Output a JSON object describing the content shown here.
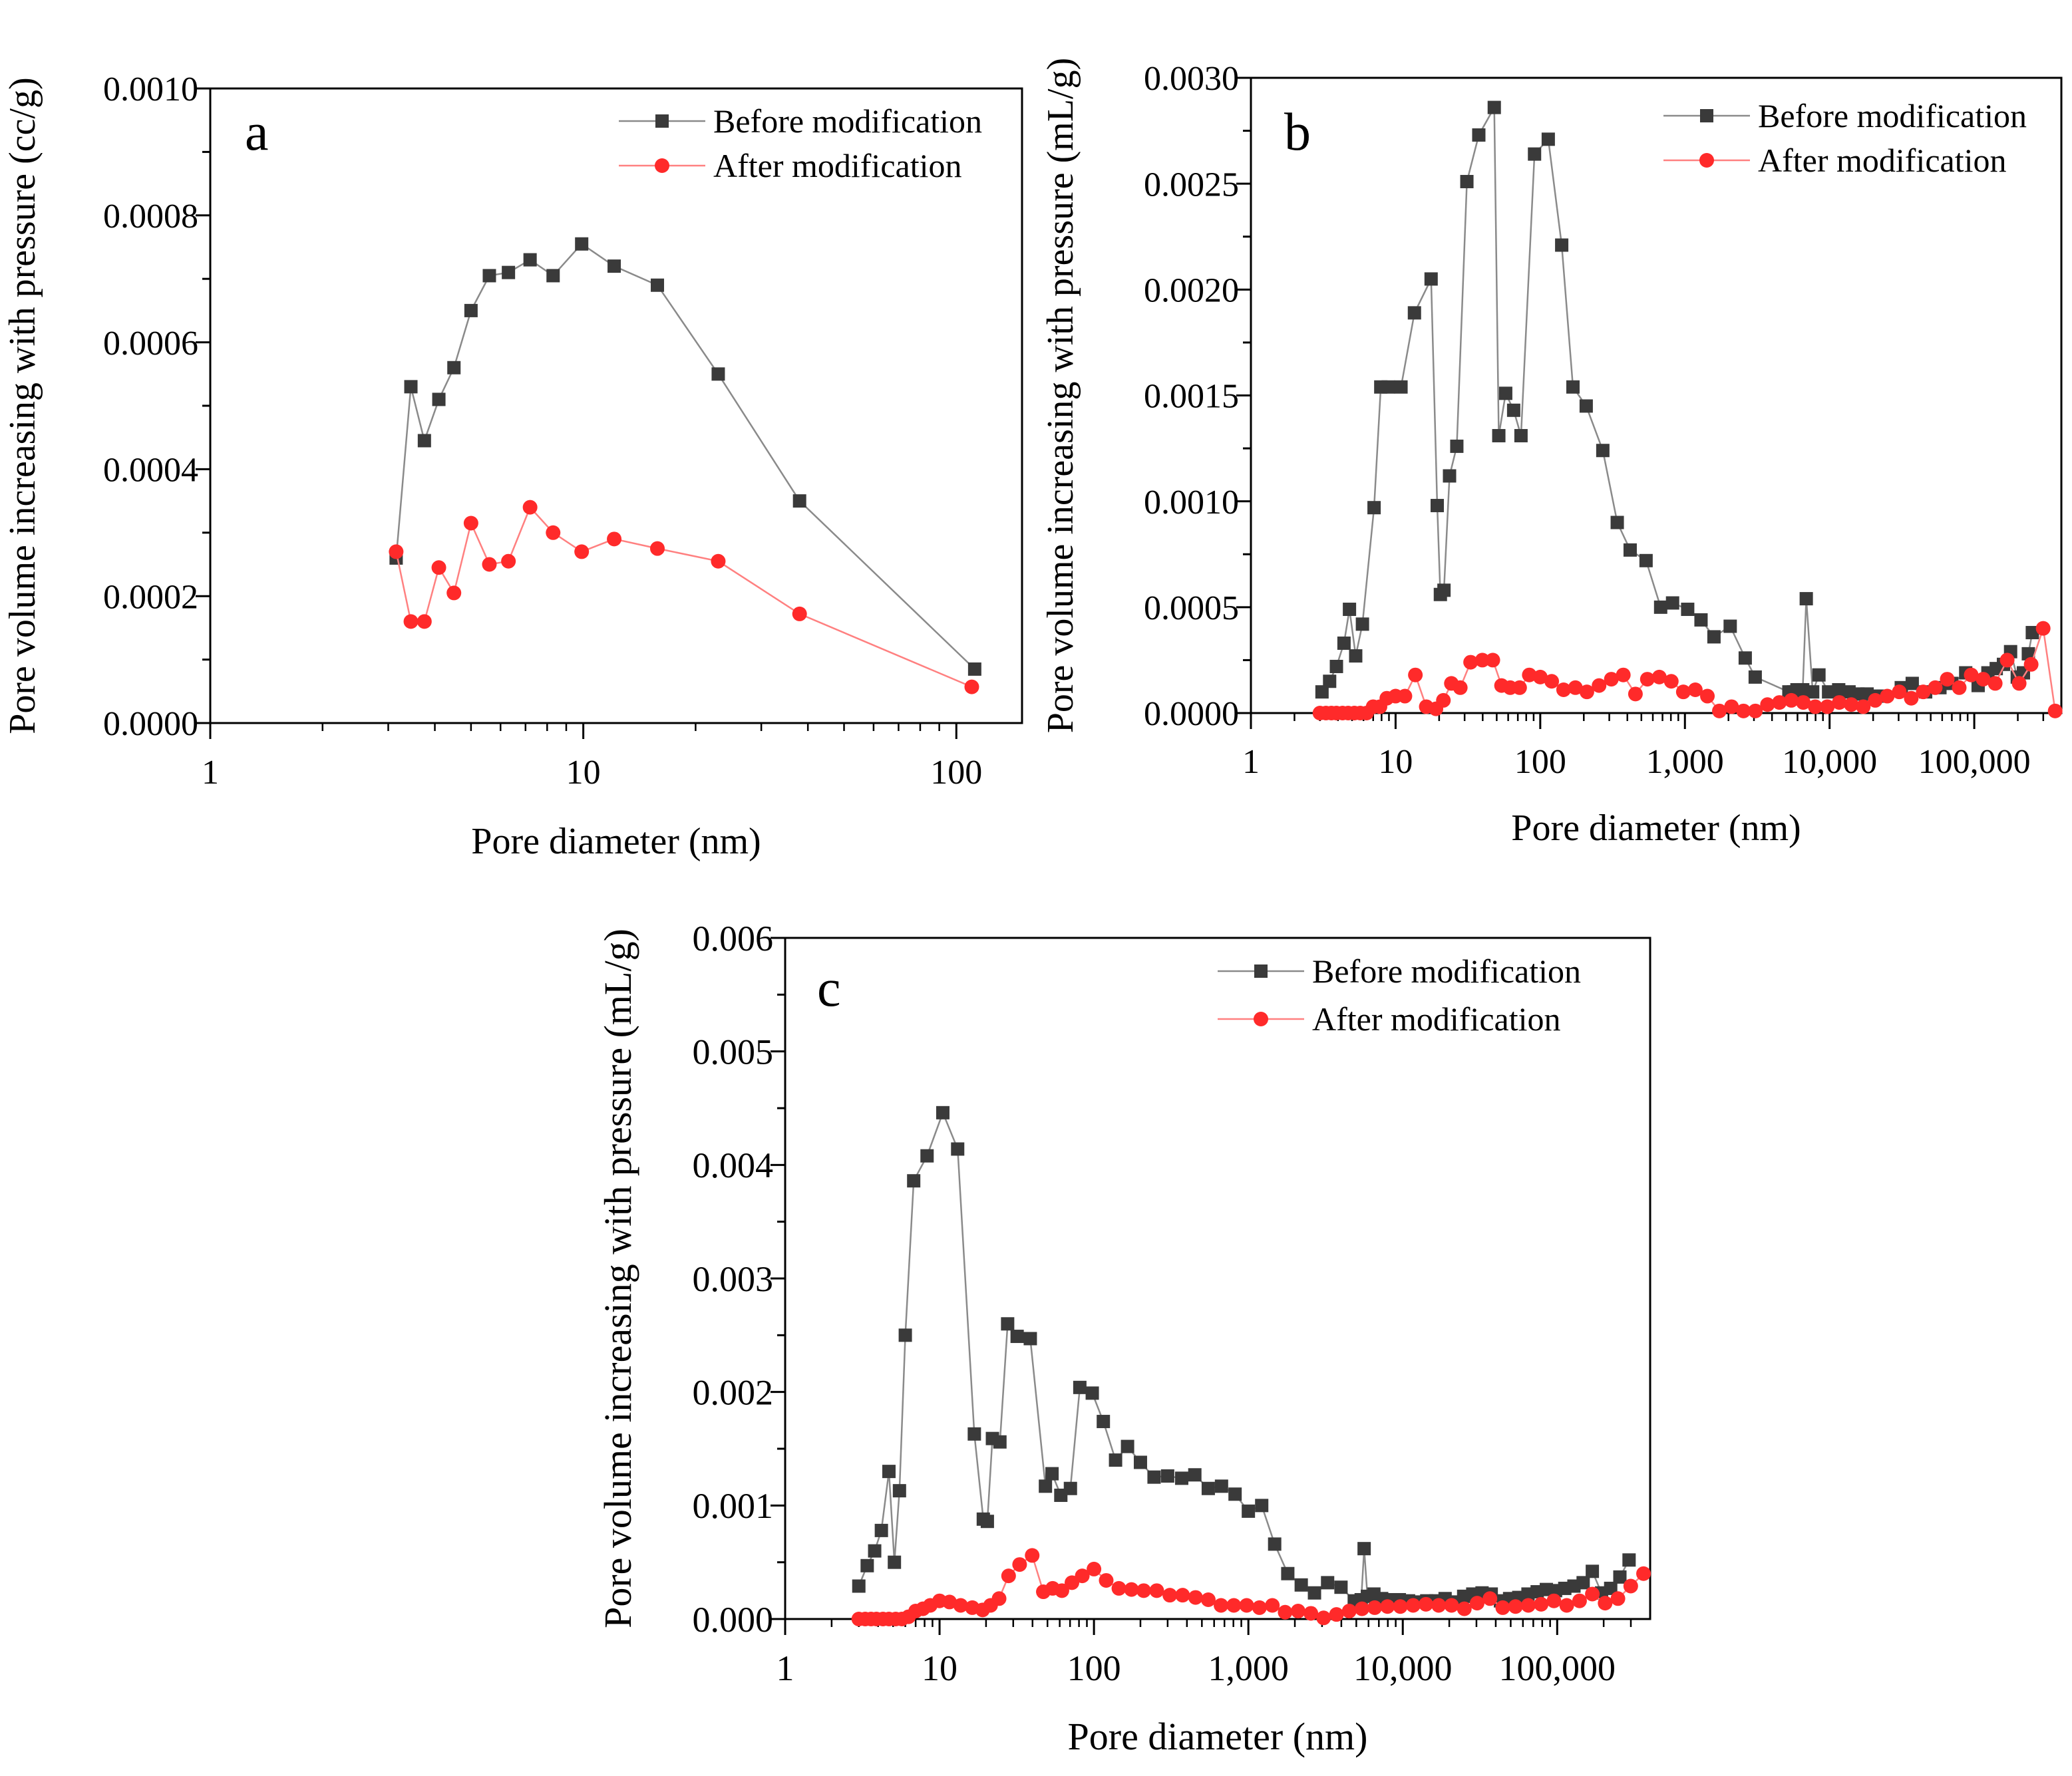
{
  "chart_data": [
    {
      "panel_label": "a",
      "type": "line",
      "xlabel": "Pore diameter (nm)",
      "ylabel": "Pore volume increasing with pressure (cc/g)",
      "xscale": "log",
      "xlim": [
        1,
        150
      ],
      "ylim": [
        0,
        0.001
      ],
      "xticks": [
        1,
        10,
        100
      ],
      "xtick_labels": [
        "1",
        "10",
        "100"
      ],
      "yticks": [
        0,
        0.0002,
        0.0004,
        0.0006,
        0.0008,
        0.001
      ],
      "ytick_labels": [
        "0.0000",
        "0.0002",
        "0.0004",
        "0.0006",
        "0.0008",
        "0.0010"
      ],
      "legend_position": "top-right",
      "series": [
        {
          "name": "Before modification",
          "marker": "square",
          "color": "#3a3a3a",
          "line_color": "#8a8a8a",
          "x": [
            3.15,
            3.45,
            3.75,
            4.1,
            4.5,
            5.0,
            5.6,
            6.3,
            7.2,
            8.3,
            9.9,
            12.1,
            15.8,
            23.0,
            38.0,
            112.0
          ],
          "y": [
            0.00026,
            0.00053,
            0.000445,
            0.00051,
            0.00056,
            0.00065,
            0.000705,
            0.00071,
            0.00073,
            0.000705,
            0.000755,
            0.00072,
            0.00069,
            0.00055,
            0.00035,
            8.5e-05
          ]
        },
        {
          "name": "After modification",
          "marker": "circle",
          "color": "#ff2a2a",
          "line_color": "#ff8080",
          "x": [
            3.15,
            3.45,
            3.75,
            4.1,
            4.5,
            5.0,
            5.6,
            6.3,
            7.2,
            8.3,
            9.9,
            12.1,
            15.8,
            23.0,
            38.0,
            110.0
          ],
          "y": [
            0.00027,
            0.00016,
            0.00016,
            0.000245,
            0.000205,
            0.000315,
            0.00025,
            0.000255,
            0.00034,
            0.0003,
            0.00027,
            0.00029,
            0.000275,
            0.000255,
            0.000172,
            5.7e-05
          ]
        }
      ]
    },
    {
      "panel_label": "b",
      "type": "line",
      "xlabel": "Pore diameter (nm)",
      "ylabel": "Pore volume increasing with pressure (mL/g)",
      "xscale": "log",
      "xlim": [
        1,
        400000
      ],
      "ylim": [
        0,
        0.003
      ],
      "xticks": [
        1,
        10,
        100,
        1000,
        10000,
        100000
      ],
      "xtick_labels": [
        "1",
        "10",
        "100",
        "1,000",
        "10,000",
        "100,000"
      ],
      "yticks": [
        0,
        0.0005,
        0.001,
        0.0015,
        0.002,
        0.0025,
        0.003
      ],
      "ytick_labels": [
        "0.0000",
        "0.0005",
        "0.0010",
        "0.0015",
        "0.0020",
        "0.0025",
        "0.0030"
      ],
      "legend_position": "top-right",
      "series": [
        {
          "name": "Before modification",
          "marker": "square",
          "color": "#3a3a3a",
          "line_color": "#8a8a8a",
          "x": [
            3.1,
            3.5,
            3.9,
            4.4,
            4.8,
            5.3,
            5.9,
            7.1,
            7.9,
            8.9,
            10.9,
            13.5,
            17.6,
            19.4,
            20.4,
            21.6,
            23.6,
            26.5,
            31.1,
            37.6,
            48.1,
            51.7,
            57.7,
            65.5,
            73.6,
            91.3,
            113.6,
            140.7,
            168.3,
            207.8,
            270.7,
            340.6,
            418.3,
            538.8,
            679.6,
            821.6,
            1045,
            1292,
            1588,
            2056,
            2612,
            3061,
            5230,
            5630,
            5950,
            6270,
            6520,
            6900,
            7640,
            8440,
            9840,
            11560,
            13630,
            15700,
            18160,
            20750,
            23690,
            31300,
            37270,
            46130,
            57900,
            70040,
            87280,
            106400,
            124300,
            141900,
            159200,
            178300,
            198300,
            218700,
            236600,
            252100
          ],
          "y": [
            0.0001,
            0.00015,
            0.00022,
            0.00033,
            0.00049,
            0.00027,
            0.00042,
            0.00097,
            0.00154,
            0.00154,
            0.00154,
            0.00189,
            0.00205,
            0.00098,
            0.00056,
            0.00058,
            0.00112,
            0.00126,
            0.00251,
            0.00273,
            0.00286,
            0.00131,
            0.00151,
            0.00143,
            0.00131,
            0.00264,
            0.00271,
            0.00221,
            0.00154,
            0.00145,
            0.00124,
            0.0009,
            0.00077,
            0.00072,
            0.0005,
            0.00052,
            0.00049,
            0.00044,
            0.00036,
            0.00041,
            0.00026,
            0.00017,
            0.0001,
            0.0001,
            0.00011,
            0.00011,
            0.00011,
            0.00054,
            0.0001,
            0.00018,
            0.0001,
            0.00011,
            0.0001,
            9e-05,
            9e-05,
            8e-05,
            8e-05,
            0.00012,
            0.00014,
            0.0001,
            0.00012,
            0.00014,
            0.00019,
            0.00013,
            0.00019,
            0.00021,
            0.00023,
            0.00029,
            0.00017,
            0.00019,
            0.00028,
            0.00038
          ]
        },
        {
          "name": "After modification",
          "marker": "circle",
          "color": "#ff2a2a",
          "line_color": "#ff8080",
          "x": [
            3.0,
            3.3,
            3.6,
            3.9,
            4.3,
            4.7,
            5.2,
            5.7,
            6.3,
            7.0,
            7.8,
            8.7,
            10.0,
            11.6,
            13.7,
            16.3,
            19.0,
            21.4,
            24.3,
            28.0,
            33.0,
            39.8,
            47.0,
            54.0,
            62.0,
            72.0,
            84.0,
            100.0,
            120.0,
            145.0,
            175.0,
            210.0,
            255.0,
            310.0,
            375.0,
            455.0,
            550.0,
            665.0,
            805.0,
            975.0,
            1180,
            1430,
            1730,
            2100,
            2540,
            3070,
            3720,
            4500,
            5440,
            6580,
            7960,
            9640,
            11670,
            14120,
            17090,
            20690,
            25040,
            30310,
            36690,
            44400,
            53740,
            65040,
            78720,
            95270,
            115300,
            139600,
            168900,
            204400,
            247400,
            299500,
            362400
          ],
          "y": [
            0.0,
            0.0,
            0.0,
            0.0,
            0.0,
            0.0,
            0.0,
            0.0,
            0.0,
            3e-05,
            3e-05,
            7e-05,
            8e-05,
            8e-05,
            0.00018,
            3e-05,
            2e-05,
            6e-05,
            0.00014,
            0.00012,
            0.00024,
            0.00025,
            0.00025,
            0.00013,
            0.00012,
            0.00012,
            0.00018,
            0.00017,
            0.00015,
            0.00011,
            0.00012,
            0.0001,
            0.00013,
            0.00016,
            0.00018,
            9e-05,
            0.00016,
            0.00017,
            0.00015,
            0.0001,
            0.00011,
            8e-05,
            1e-05,
            3e-05,
            1e-05,
            1e-05,
            4e-05,
            5e-05,
            6e-05,
            5e-05,
            3e-05,
            3e-05,
            5e-05,
            4e-05,
            3e-05,
            6e-05,
            8e-05,
            0.0001,
            7e-05,
            0.0001,
            0.00012,
            0.00016,
            0.00012,
            0.00018,
            0.00016,
            0.00014,
            0.00025,
            0.00014,
            0.00023,
            0.0004,
            1e-05
          ]
        }
      ]
    },
    {
      "panel_label": "c",
      "type": "line",
      "xlabel": "Pore diameter (nm)",
      "ylabel": "Pore volume increasing with pressure (mL/g)",
      "xscale": "log",
      "xlim": [
        1,
        400000
      ],
      "ylim": [
        0,
        0.006
      ],
      "xticks": [
        1,
        10,
        100,
        1000,
        10000,
        100000
      ],
      "xtick_labels": [
        "1",
        "10",
        "100",
        "1,000",
        "10,000",
        "100,000"
      ],
      "yticks": [
        0,
        0.001,
        0.002,
        0.003,
        0.004,
        0.005,
        0.006
      ],
      "ytick_labels": [
        "0.000",
        "0.001",
        "0.002",
        "0.003",
        "0.004",
        "0.005",
        "0.006"
      ],
      "legend_position": "top-right",
      "series": [
        {
          "name": "Before modification",
          "marker": "square",
          "color": "#3a3a3a",
          "line_color": "#8a8a8a",
          "x": [
            3.0,
            3.4,
            3.8,
            4.2,
            4.7,
            5.1,
            5.5,
            6.0,
            6.8,
            8.3,
            10.5,
            13.1,
            16.8,
            19.2,
            20.4,
            22.0,
            24.6,
            27.6,
            31.8,
            38.7,
            48.5,
            53.5,
            61.0,
            70.4,
            81.0,
            97.5,
            115.0,
            138.0,
            165.0,
            200.0,
            245.0,
            300.0,
            370.0,
            450.0,
            550.0,
            670.0,
            820.0,
            1000,
            1220,
            1480,
            1800,
            2200,
            2680,
            3260,
            3980,
            4850,
            5380,
            5620,
            5900,
            6500,
            7300,
            8300,
            9500,
            10900,
            12500,
            14300,
            16400,
            18800,
            21600,
            24800,
            28400,
            32600,
            37400,
            42900,
            49200,
            56400,
            64700,
            74200,
            85100,
            97600,
            112000,
            128400,
            147300,
            168900,
            193700,
            222100,
            254700,
            292100
          ],
          "y": [
            0.00029,
            0.00047,
            0.0006,
            0.00078,
            0.0013,
            0.0005,
            0.00113,
            0.0025,
            0.00386,
            0.00408,
            0.00446,
            0.00414,
            0.00163,
            0.00088,
            0.00086,
            0.00159,
            0.00156,
            0.0026,
            0.00249,
            0.00247,
            0.00117,
            0.00128,
            0.00109,
            0.00115,
            0.00204,
            0.00199,
            0.00174,
            0.0014,
            0.00152,
            0.00138,
            0.00125,
            0.00126,
            0.00124,
            0.00127,
            0.00115,
            0.00117,
            0.0011,
            0.00095,
            0.001,
            0.00066,
            0.0004,
            0.0003,
            0.00023,
            0.00032,
            0.00028,
            0.00016,
            0.00017,
            0.00062,
            0.0002,
            0.00022,
            0.00018,
            0.00017,
            0.00017,
            0.00016,
            0.00015,
            0.00016,
            0.00016,
            0.00018,
            0.00015,
            0.0002,
            0.00022,
            0.00023,
            0.00022,
            0.00016,
            0.00018,
            0.00019,
            0.00022,
            0.00024,
            0.00026,
            0.00025,
            0.00027,
            0.00029,
            0.00032,
            0.00042,
            0.00023,
            0.00027,
            0.00037,
            0.00052
          ]
        },
        {
          "name": "After modification",
          "marker": "circle",
          "color": "#ff2a2a",
          "line_color": "#ff8080",
          "x": [
            3.0,
            3.3,
            3.6,
            3.9,
            4.3,
            4.7,
            5.2,
            5.7,
            6.3,
            7.0,
            7.8,
            8.7,
            10.0,
            11.6,
            13.7,
            16.3,
            19.0,
            21.4,
            24.3,
            28.0,
            33.0,
            39.8,
            47.0,
            54.0,
            62.0,
            72.0,
            84.0,
            100.0,
            120.0,
            145.0,
            175.0,
            210.0,
            255.0,
            310.0,
            375.0,
            455.0,
            550.0,
            665.0,
            805.0,
            975.0,
            1180,
            1430,
            1730,
            2100,
            2540,
            3070,
            3720,
            4500,
            5440,
            6580,
            7960,
            9640,
            11670,
            14120,
            17090,
            20690,
            25040,
            30310,
            36690,
            44400,
            53740,
            65040,
            78720,
            95270,
            115300,
            139600,
            168900,
            204400,
            247400,
            299500,
            362400
          ],
          "y": [
            0.0,
            0.0,
            0.0,
            0.0,
            0.0,
            0.0,
            0.0,
            0.0,
            2e-05,
            7e-05,
            9e-05,
            0.00012,
            0.00016,
            0.00015,
            0.00012,
            0.0001,
            8e-05,
            0.00012,
            0.00018,
            0.00038,
            0.00048,
            0.00056,
            0.00024,
            0.00027,
            0.00025,
            0.00032,
            0.00038,
            0.00044,
            0.00034,
            0.00027,
            0.00026,
            0.00025,
            0.00025,
            0.00021,
            0.00021,
            0.00019,
            0.00017,
            0.00012,
            0.00012,
            0.00012,
            0.0001,
            0.00012,
            6e-05,
            7e-05,
            5e-05,
            1e-05,
            4e-05,
            7e-05,
            9e-05,
            0.0001,
            0.00011,
            0.00011,
            0.00012,
            0.00013,
            0.00012,
            0.00012,
            9e-05,
            0.00014,
            0.00018,
            0.0001,
            0.00011,
            0.00012,
            0.00013,
            0.00016,
            0.00012,
            0.00016,
            0.00022,
            0.00014,
            0.00018,
            0.00029,
            0.0004
          ]
        }
      ]
    }
  ]
}
